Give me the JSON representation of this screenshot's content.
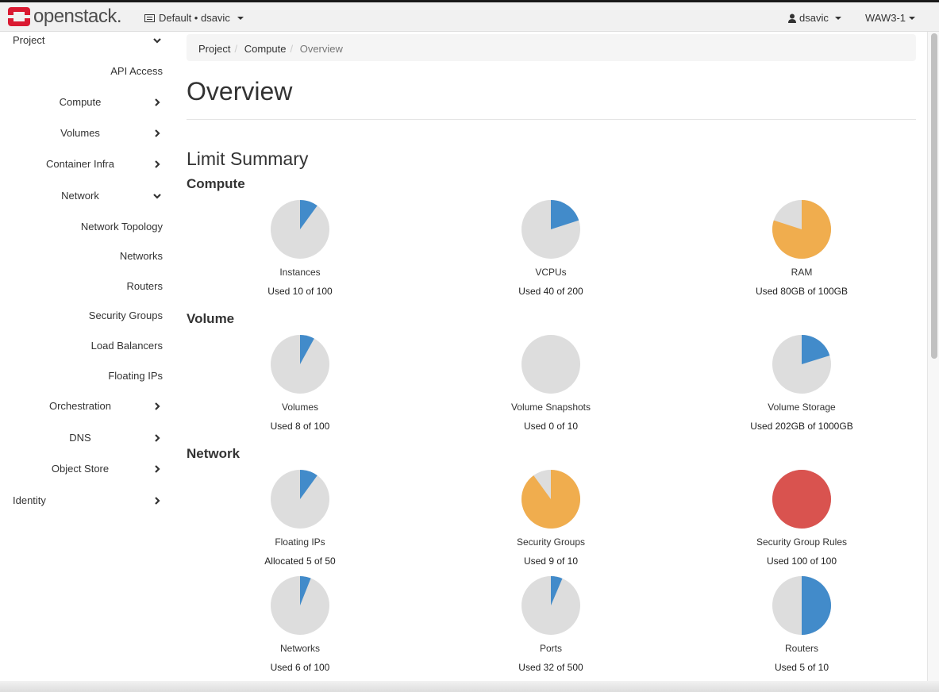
{
  "header": {
    "brand": "openstack.",
    "project_selector": "Default • dsavic",
    "user": "dsavic",
    "region": "WAW3-1"
  },
  "sidebar": {
    "items": [
      {
        "label": "Project",
        "level": 0,
        "chevron": "down"
      },
      {
        "label": "API Access",
        "level": 2
      },
      {
        "label": "Compute",
        "level": 1,
        "chevron": "right"
      },
      {
        "label": "Volumes",
        "level": 1,
        "chevron": "right"
      },
      {
        "label": "Container Infra",
        "level": 1,
        "chevron": "right"
      },
      {
        "label": "Network",
        "level": 1,
        "chevron": "down"
      },
      {
        "label": "Network Topology",
        "level": 2
      },
      {
        "label": "Networks",
        "level": 2
      },
      {
        "label": "Routers",
        "level": 2
      },
      {
        "label": "Security Groups",
        "level": 2
      },
      {
        "label": "Load Balancers",
        "level": 2
      },
      {
        "label": "Floating IPs",
        "level": 2
      },
      {
        "label": "Orchestration",
        "level": 1,
        "chevron": "right"
      },
      {
        "label": "DNS",
        "level": 1,
        "chevron": "right"
      },
      {
        "label": "Object Store",
        "level": 1,
        "chevron": "right"
      },
      {
        "label": "Identity",
        "level": 0,
        "chevron": "right"
      }
    ]
  },
  "breadcrumb": [
    "Project",
    "Compute",
    "Overview"
  ],
  "page_title": "Overview",
  "section_title": "Limit Summary",
  "colors": {
    "blue": "#428bca",
    "orange": "#f0ad4e",
    "red": "#d9534f",
    "empty": "#dddddd"
  },
  "groups": [
    {
      "title": "Compute",
      "charts": [
        {
          "label": "Instances",
          "used_text": "Used 10 of 100",
          "used": 10,
          "total": 100,
          "color": "#428bca"
        },
        {
          "label": "VCPUs",
          "used_text": "Used 40 of 200",
          "used": 40,
          "total": 200,
          "color": "#428bca"
        },
        {
          "label": "RAM",
          "used_text": "Used 80GB of 100GB",
          "used": 80,
          "total": 100,
          "color": "#f0ad4e"
        }
      ]
    },
    {
      "title": "Volume",
      "charts": [
        {
          "label": "Volumes",
          "used_text": "Used 8 of 100",
          "used": 8,
          "total": 100,
          "color": "#428bca"
        },
        {
          "label": "Volume Snapshots",
          "used_text": "Used 0 of 10",
          "used": 0,
          "total": 10,
          "color": "#428bca"
        },
        {
          "label": "Volume Storage",
          "used_text": "Used 202GB of 1000GB",
          "used": 202,
          "total": 1000,
          "color": "#428bca"
        }
      ]
    },
    {
      "title": "Network",
      "charts": [
        {
          "label": "Floating IPs",
          "used_text": "Allocated 5 of 50",
          "used": 5,
          "total": 50,
          "color": "#428bca"
        },
        {
          "label": "Security Groups",
          "used_text": "Used 9 of 10",
          "used": 9,
          "total": 10,
          "color": "#f0ad4e"
        },
        {
          "label": "Security Group Rules",
          "used_text": "Used 100 of 100",
          "used": 100,
          "total": 100,
          "color": "#d9534f"
        },
        {
          "label": "Networks",
          "used_text": "Used 6 of 100",
          "used": 6,
          "total": 100,
          "color": "#428bca"
        },
        {
          "label": "Ports",
          "used_text": "Used 32 of 500",
          "used": 32,
          "total": 500,
          "color": "#428bca"
        },
        {
          "label": "Routers",
          "used_text": "Used 5 of 10",
          "used": 5,
          "total": 10,
          "color": "#428bca"
        }
      ]
    }
  ]
}
